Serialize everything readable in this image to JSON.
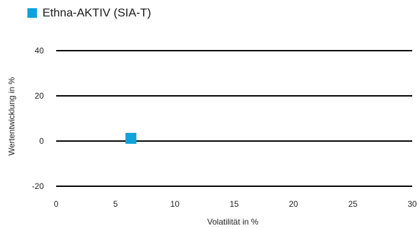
{
  "chart_data": {
    "type": "scatter",
    "title": "",
    "xlabel": "Volatilität in %",
    "ylabel": "Wertentwicklung in %",
    "xlim": [
      0,
      30
    ],
    "ylim": [
      -20,
      40
    ],
    "x_ticks": [
      "0",
      "5",
      "10",
      "15",
      "20",
      "25",
      "30"
    ],
    "y_ticks": [
      "40",
      "20",
      "0",
      "-20"
    ],
    "grid": "horizontal",
    "legend_position": "top-left",
    "series": [
      {
        "name": "Ethna-AKTIV (SIA-T)",
        "color": "#0fa3dc",
        "marker": "square",
        "points": [
          {
            "x": 6.3,
            "y": 1.2
          }
        ]
      }
    ]
  }
}
